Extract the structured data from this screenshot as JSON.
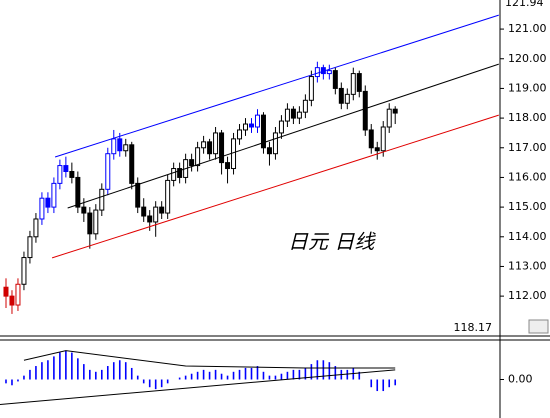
{
  "chart_data": [
    {
      "type": "candlestick",
      "annotation": "日元  日线",
      "high_price": 121.94,
      "last_price": 118.17,
      "xlim": [
        -1,
        82.5
      ],
      "ylim": [
        110.69,
        121.98
      ],
      "yticks": [
        {
          "value": 112,
          "label": "112.00"
        },
        {
          "value": 113,
          "label": "113.00"
        },
        {
          "value": 114,
          "label": "114.00"
        },
        {
          "value": 115,
          "label": "115.00"
        },
        {
          "value": 116,
          "label": "116.00"
        },
        {
          "value": 117,
          "label": "117.00"
        },
        {
          "value": 118,
          "label": "118.00"
        },
        {
          "value": 119,
          "label": "119.00"
        },
        {
          "value": 120,
          "label": "120.00"
        },
        {
          "value": 121,
          "label": "121.00"
        }
      ],
      "candles": [
        [
          112.3,
          112.6,
          111.6,
          112.0
        ],
        [
          112.0,
          112.2,
          111.4,
          111.7
        ],
        [
          111.7,
          112.6,
          111.5,
          112.4
        ],
        [
          112.4,
          113.5,
          112.2,
          113.3
        ],
        [
          113.3,
          114.2,
          113.1,
          114.0
        ],
        [
          114.0,
          114.8,
          113.8,
          114.6
        ],
        [
          114.6,
          115.5,
          114.4,
          115.3
        ],
        [
          115.3,
          115.5,
          114.8,
          115.0
        ],
        [
          115.0,
          116.0,
          114.8,
          115.8
        ],
        [
          115.8,
          116.6,
          115.6,
          116.4
        ],
        [
          116.4,
          116.7,
          116.0,
          116.2
        ],
        [
          116.2,
          116.5,
          115.8,
          116.0
        ],
        [
          116.0,
          116.2,
          114.8,
          115.0
        ],
        [
          115.0,
          115.3,
          114.5,
          114.8
        ],
        [
          114.8,
          115.0,
          113.6,
          114.1
        ],
        [
          114.1,
          115.1,
          113.9,
          114.9
        ],
        [
          114.9,
          115.8,
          114.7,
          115.6
        ],
        [
          115.6,
          117.0,
          115.4,
          116.8
        ],
        [
          116.8,
          117.6,
          116.6,
          117.3
        ],
        [
          117.3,
          117.5,
          116.7,
          116.9
        ],
        [
          116.9,
          117.3,
          116.7,
          117.1
        ],
        [
          117.1,
          117.2,
          115.6,
          115.8
        ],
        [
          115.8,
          116.0,
          114.8,
          115.0
        ],
        [
          115.0,
          115.3,
          114.5,
          114.7
        ],
        [
          114.7,
          114.9,
          114.2,
          114.5
        ],
        [
          114.5,
          115.2,
          114.0,
          115.0
        ],
        [
          115.0,
          115.2,
          114.6,
          114.8
        ],
        [
          114.8,
          116.1,
          114.6,
          115.9
        ],
        [
          115.9,
          116.5,
          115.7,
          116.3
        ],
        [
          116.3,
          116.5,
          115.8,
          116.0
        ],
        [
          116.0,
          116.8,
          115.8,
          116.6
        ],
        [
          116.6,
          116.8,
          116.2,
          116.4
        ],
        [
          116.4,
          117.2,
          116.2,
          117.0
        ],
        [
          117.0,
          117.4,
          116.8,
          117.2
        ],
        [
          117.2,
          117.3,
          116.6,
          116.8
        ],
        [
          116.8,
          117.7,
          116.6,
          117.5
        ],
        [
          117.5,
          117.6,
          116.1,
          116.5
        ],
        [
          116.5,
          116.7,
          115.8,
          116.3
        ],
        [
          116.3,
          117.5,
          116.1,
          117.3
        ],
        [
          117.3,
          117.8,
          117.1,
          117.6
        ],
        [
          117.6,
          118.0,
          117.4,
          117.8
        ],
        [
          117.8,
          118.0,
          117.5,
          117.7
        ],
        [
          117.7,
          118.3,
          117.5,
          118.1
        ],
        [
          118.1,
          118.2,
          116.8,
          117.0
        ],
        [
          117.0,
          117.2,
          116.4,
          116.8
        ],
        [
          116.8,
          117.7,
          116.6,
          117.5
        ],
        [
          117.5,
          118.1,
          117.3,
          117.9
        ],
        [
          117.9,
          118.5,
          117.7,
          118.3
        ],
        [
          118.3,
          118.4,
          117.8,
          118.0
        ],
        [
          118.0,
          118.4,
          117.8,
          118.2
        ],
        [
          118.2,
          118.8,
          118.0,
          118.6
        ],
        [
          118.6,
          119.6,
          118.4,
          119.4
        ],
        [
          119.4,
          119.9,
          119.2,
          119.7
        ],
        [
          119.7,
          119.8,
          119.3,
          119.5
        ],
        [
          119.5,
          119.8,
          119.3,
          119.6
        ],
        [
          119.6,
          119.7,
          118.8,
          119.0
        ],
        [
          119.0,
          119.2,
          118.3,
          118.5
        ],
        [
          118.5,
          119.0,
          118.3,
          118.8
        ],
        [
          118.8,
          119.7,
          118.6,
          119.5
        ],
        [
          119.5,
          119.6,
          118.7,
          118.9
        ],
        [
          118.9,
          119.1,
          117.4,
          117.6
        ],
        [
          117.6,
          117.8,
          116.8,
          117.0
        ],
        [
          117.0,
          117.2,
          116.6,
          116.9
        ],
        [
          116.9,
          117.9,
          116.7,
          117.7
        ],
        [
          117.7,
          118.5,
          117.5,
          118.3
        ],
        [
          118.3,
          118.4,
          117.8,
          118.17
        ]
      ],
      "candle_colors": [
        "#d00000",
        "#d00000",
        "#d00000",
        "#000000",
        "#000000",
        "#000000",
        "#0000ff",
        "#0000ff",
        "#0000ff",
        "#0000ff",
        "#0000ff",
        "#000000",
        "#000000",
        "#000000",
        "#000000",
        "#000000",
        "#000000",
        "#0000ff",
        "#0000ff",
        "#0000ff",
        "#000000",
        "#000000",
        "#000000",
        "#000000",
        "#000000",
        "#000000",
        "#000000",
        "#000000",
        "#000000",
        "#000000",
        "#000000",
        "#000000",
        "#000000",
        "#000000",
        "#000000",
        "#000000",
        "#000000",
        "#000000",
        "#000000",
        "#000000",
        "#000000",
        "#0000ff",
        "#0000ff",
        "#000000",
        "#000000",
        "#000000",
        "#000000",
        "#000000",
        "#000000",
        "#000000",
        "#000000",
        "#000000",
        "#0000ff",
        "#0000ff",
        "#0000ff",
        "#000000",
        "#000000",
        "#000000",
        "#000000",
        "#000000",
        "#000000",
        "#000000",
        "#000000",
        "#000000",
        "#000000",
        "#000000"
      ],
      "lines": [
        {
          "color": "#0000ff",
          "x": [
            8.2,
            82.3
          ],
          "values": [
            116.69,
            121.47
          ]
        },
        {
          "color": "#000000",
          "x": [
            10.3,
            82.3
          ],
          "values": [
            114.97,
            119.82
          ]
        },
        {
          "color": "#e00000",
          "x": [
            7.7,
            82.3
          ],
          "values": [
            113.29,
            118.1
          ]
        }
      ]
    },
    {
      "type": "bar",
      "xlim": [
        -1,
        82.5
      ],
      "ylim": [
        -1,
        1
      ],
      "yticks": [
        {
          "value": 0,
          "label": "0.00"
        }
      ],
      "color": "#0000ff",
      "values": [
        -0.1,
        -0.15,
        -0.05,
        0.1,
        0.25,
        0.35,
        0.45,
        0.5,
        0.6,
        0.7,
        0.75,
        0.7,
        0.55,
        0.4,
        0.25,
        0.2,
        0.25,
        0.35,
        0.45,
        0.5,
        0.45,
        0.3,
        0.1,
        -0.1,
        -0.2,
        -0.25,
        -0.2,
        -0.1,
        0.0,
        0.05,
        0.1,
        0.15,
        0.2,
        0.25,
        0.2,
        0.25,
        0.15,
        0.1,
        0.2,
        0.25,
        0.3,
        0.3,
        0.35,
        0.2,
        0.1,
        0.1,
        0.15,
        0.2,
        0.25,
        0.25,
        0.3,
        0.4,
        0.5,
        0.5,
        0.45,
        0.35,
        0.25,
        0.25,
        0.3,
        0.2,
        0.0,
        -0.2,
        -0.3,
        -0.3,
        -0.2,
        -0.15
      ],
      "lines": [
        {
          "color": "#000000",
          "x": [
            3,
            10,
            30,
            50,
            65
          ],
          "values": [
            0.5,
            0.75,
            0.35,
            0.3,
            0.3
          ]
        },
        {
          "color": "#000000",
          "x": [
            -1,
            65
          ],
          "values": [
            -0.65,
            0.25
          ]
        }
      ]
    }
  ]
}
